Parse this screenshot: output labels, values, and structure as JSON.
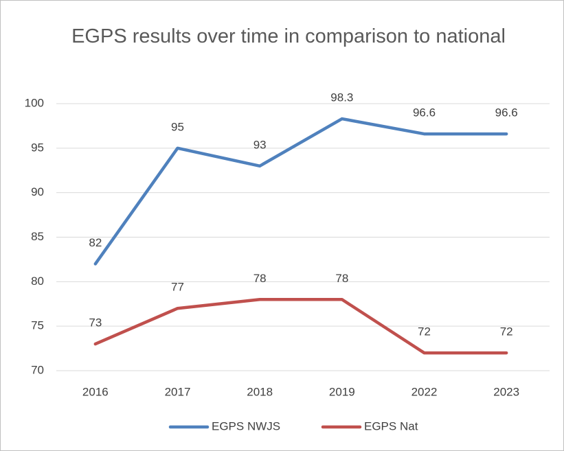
{
  "chart_data": {
    "type": "line",
    "title": "EGPS results over time in comparison to national",
    "categories": [
      "2016",
      "2017",
      "2018",
      "2019",
      "2022",
      "2023"
    ],
    "series": [
      {
        "name": "EGPS NWJS",
        "color": "#4f81bd",
        "values": [
          82,
          95,
          93,
          98.3,
          96.6,
          96.6
        ]
      },
      {
        "name": "EGPS Nat",
        "color": "#c0504d",
        "values": [
          73,
          77,
          78,
          78,
          72,
          72
        ]
      }
    ],
    "ylim": [
      70,
      100
    ],
    "yticks": [
      70,
      75,
      80,
      85,
      90,
      95,
      100
    ],
    "grid": true,
    "legend": "bottom"
  }
}
